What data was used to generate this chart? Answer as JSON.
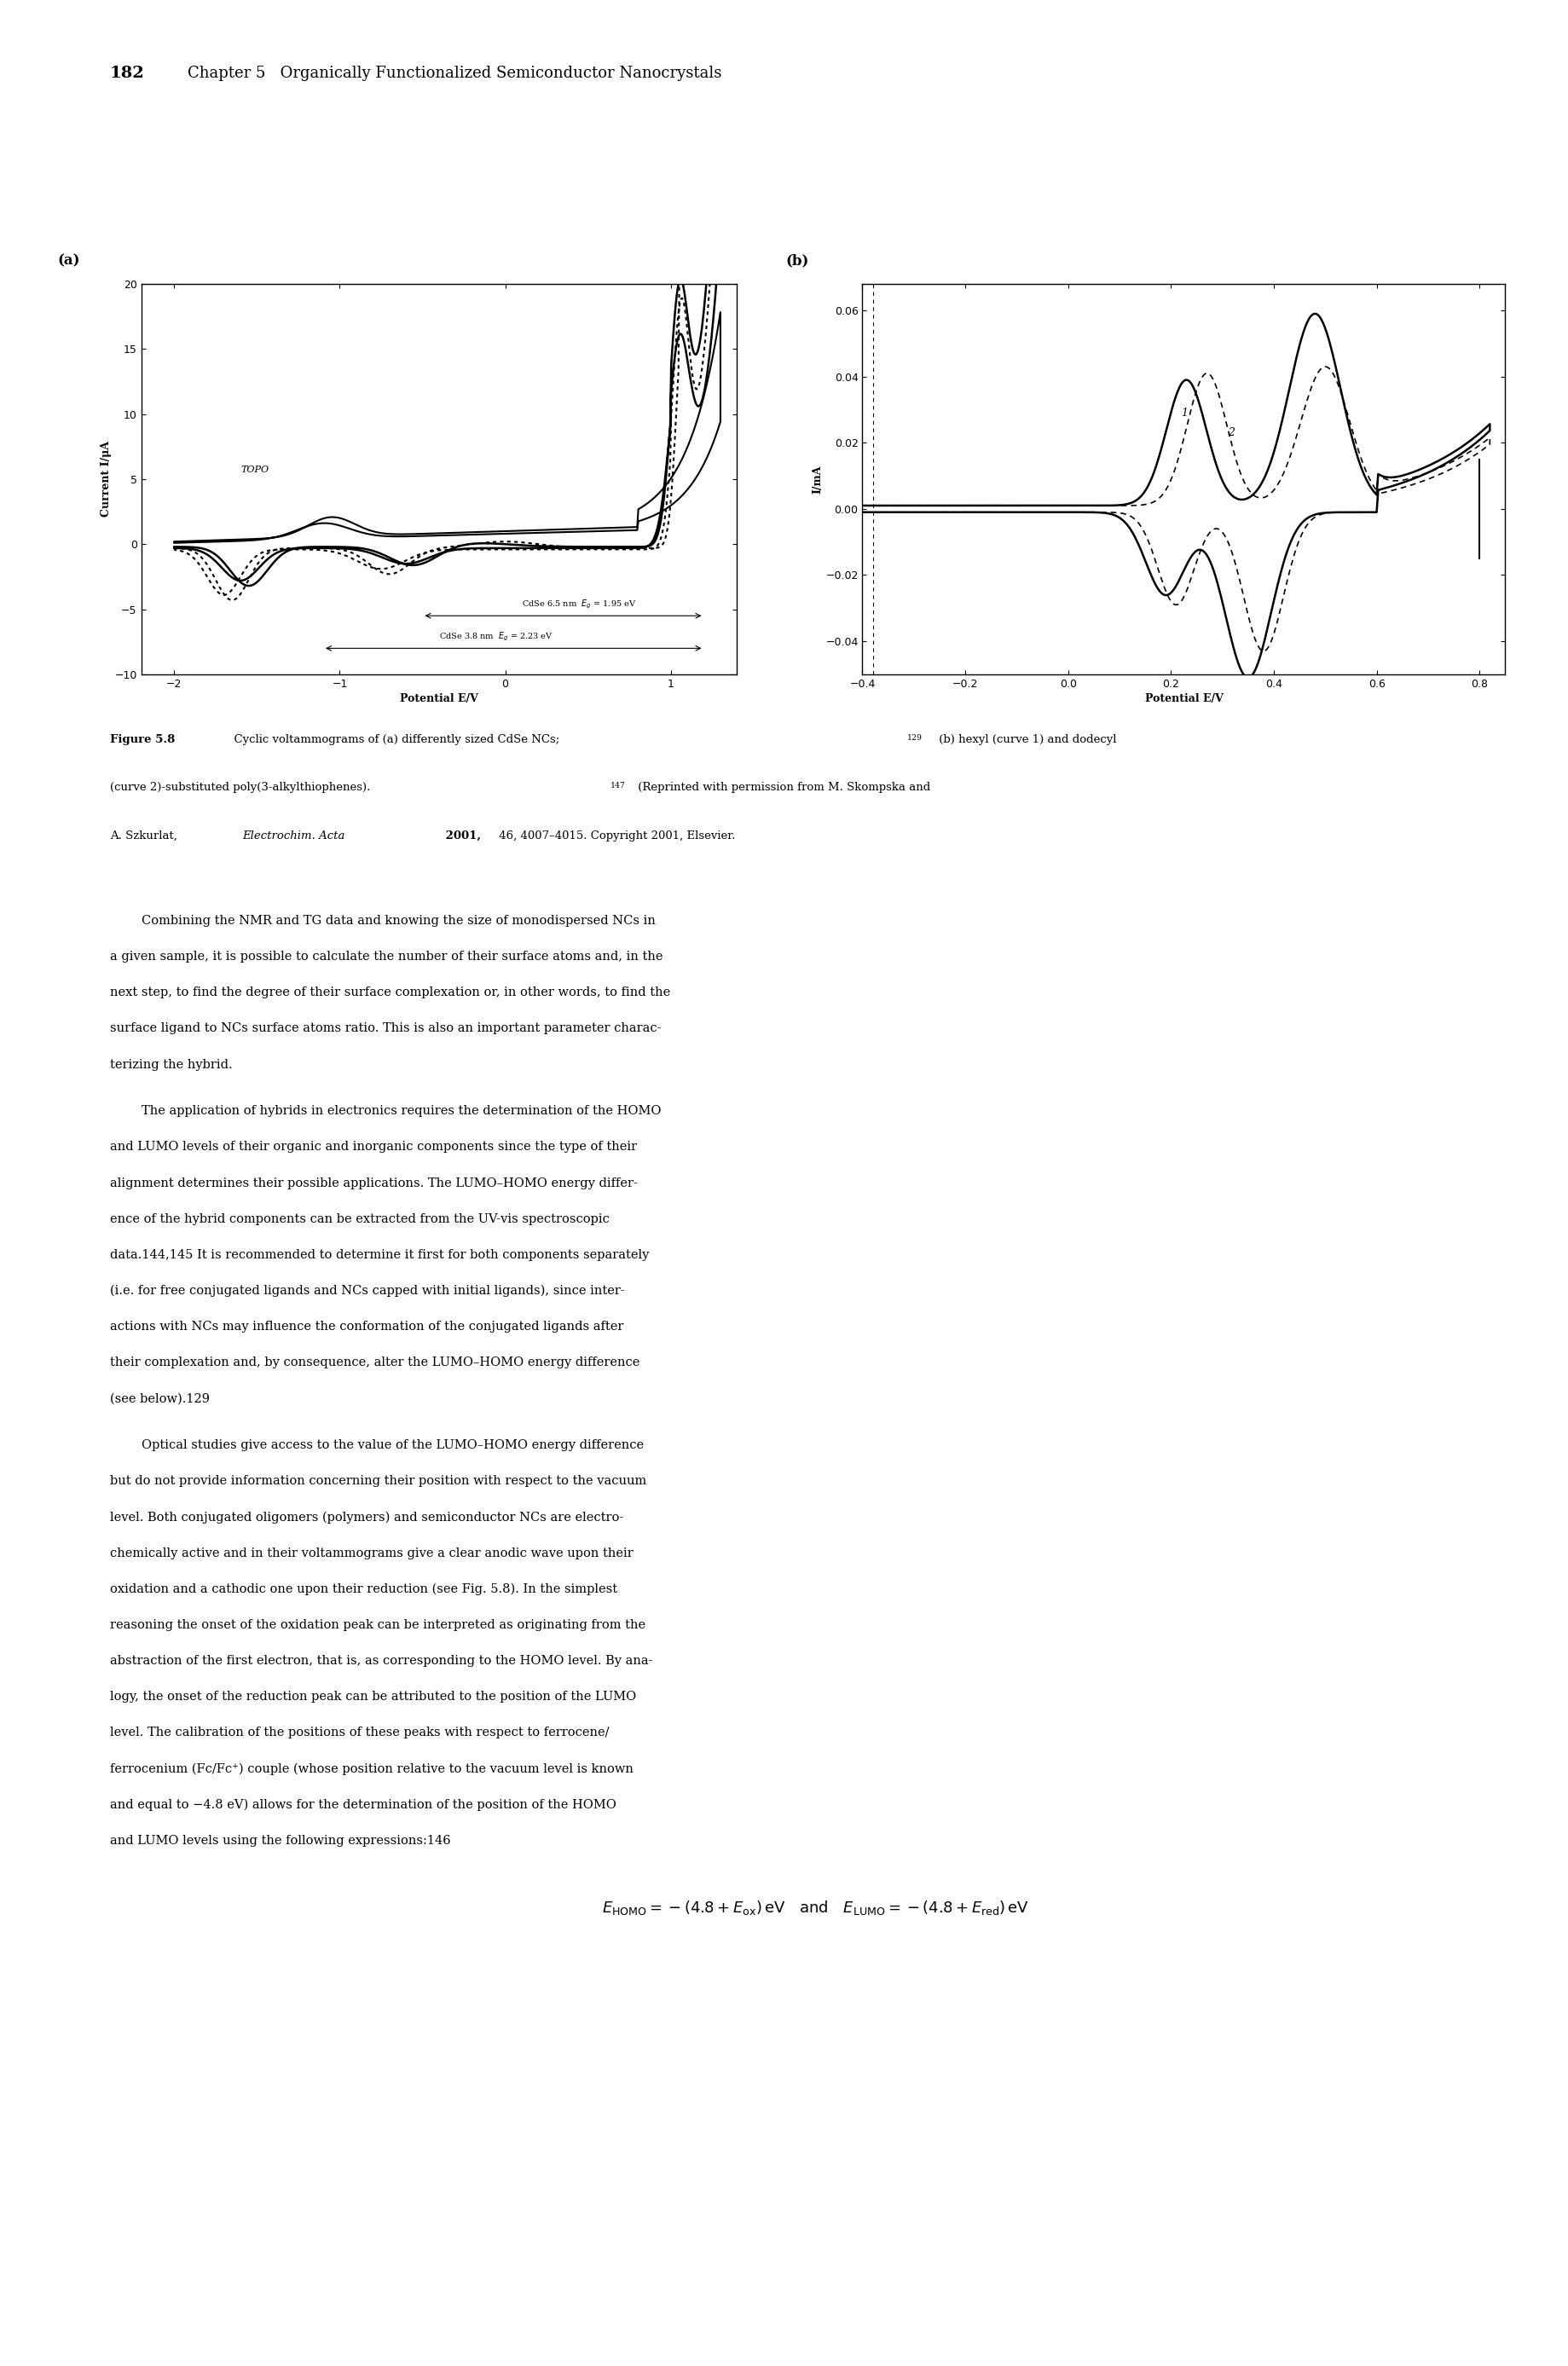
{
  "page_number": "182",
  "header_text": "Chapter 5   Organically Functionalized Semiconductor Nanocrystals",
  "fig_label_a": "(a)",
  "fig_label_b": "(b)",
  "panel_a": {
    "xlim": [
      -2.2,
      1.4
    ],
    "ylim": [
      -10,
      20
    ],
    "xticks": [
      -2,
      -1,
      0,
      1
    ],
    "yticks": [
      -10,
      -5,
      0,
      5,
      10,
      15,
      20
    ],
    "xlabel": "Potential E/V",
    "ylabel": "Current I/μA"
  },
  "panel_b": {
    "xlim": [
      -0.4,
      0.85
    ],
    "ylim": [
      -0.05,
      0.068
    ],
    "xticks": [
      -0.4,
      -0.2,
      0,
      0.2,
      0.4,
      0.6,
      0.8
    ],
    "yticks": [
      -0.04,
      -0.02,
      0,
      0.02,
      0.04,
      0.06
    ],
    "xlabel": "Potential E/V",
    "ylabel": "I/mA"
  },
  "background_color": "#ffffff",
  "text_color": "#000000"
}
